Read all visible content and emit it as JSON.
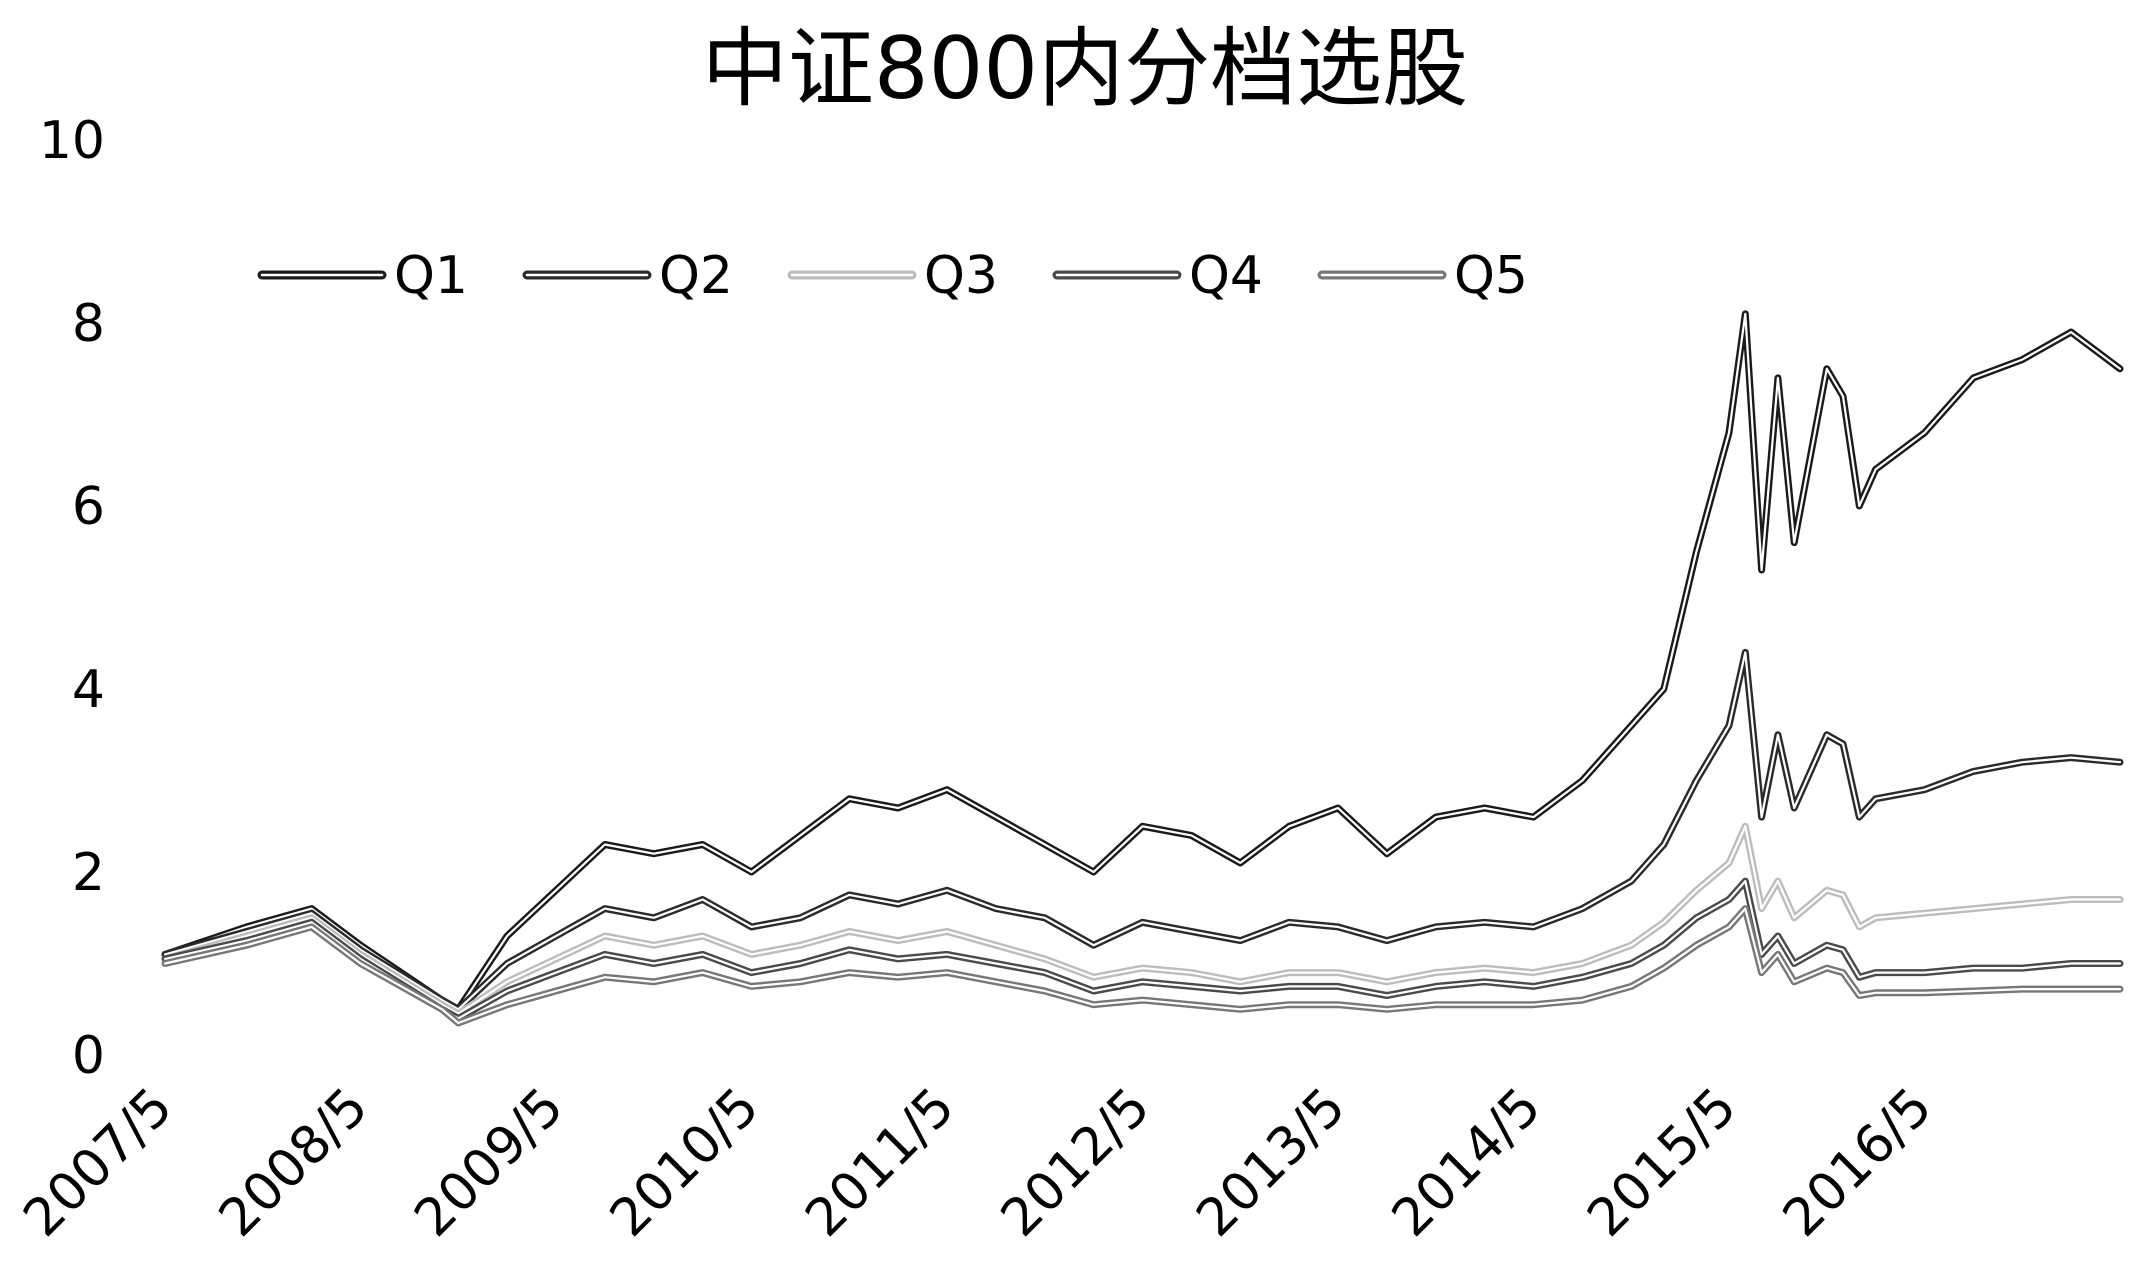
{
  "chart_data": {
    "type": "line",
    "title": "中证800内分档选股",
    "xlabel": "",
    "ylabel": "",
    "ylim": [
      0,
      10
    ],
    "yticks": [
      "0",
      "2",
      "4",
      "6",
      "8",
      "10"
    ],
    "x_tick_labels": [
      "2007/5",
      "2008/5",
      "2009/5",
      "2010/5",
      "2011/5",
      "2012/5",
      "2013/5",
      "2014/5",
      "2015/5",
      "2016/5"
    ],
    "xlim": [
      "2007/5",
      "2017/5"
    ],
    "grid": false,
    "legend_position": "top",
    "x": [
      "2007/5",
      "2007/10",
      "2008/2",
      "2008/5",
      "2008/10",
      "2008/11",
      "2009/2",
      "2009/5",
      "2009/8",
      "2009/11",
      "2010/2",
      "2010/5",
      "2010/8",
      "2010/11",
      "2011/2",
      "2011/5",
      "2011/8",
      "2011/11",
      "2012/2",
      "2012/5",
      "2012/8",
      "2012/11",
      "2013/2",
      "2013/5",
      "2013/8",
      "2013/11",
      "2014/2",
      "2014/5",
      "2014/8",
      "2014/11",
      "2015/1",
      "2015/3",
      "2015/5",
      "2015/6",
      "2015/7",
      "2015/8",
      "2015/9",
      "2015/11",
      "2015/12",
      "2016/1",
      "2016/2",
      "2016/5",
      "2016/8",
      "2016/11",
      "2017/2",
      "2017/5"
    ],
    "series": [
      {
        "name": "Q1",
        "color": "#1a1a1a",
        "values": [
          1.1,
          1.4,
          1.6,
          1.2,
          0.6,
          0.5,
          1.3,
          1.8,
          2.3,
          2.2,
          2.3,
          2.0,
          2.4,
          2.8,
          2.7,
          2.9,
          2.6,
          2.3,
          2.0,
          2.5,
          2.4,
          2.1,
          2.5,
          2.7,
          2.2,
          2.6,
          2.7,
          2.6,
          3.0,
          3.6,
          4.0,
          5.5,
          6.8,
          8.1,
          5.3,
          7.4,
          5.6,
          7.5,
          7.2,
          6.0,
          6.4,
          6.8,
          7.4,
          7.6,
          7.9,
          7.5
        ]
      },
      {
        "name": "Q2",
        "color": "#2a2a2a",
        "values": [
          1.1,
          1.35,
          1.55,
          1.15,
          0.6,
          0.5,
          1.0,
          1.3,
          1.6,
          1.5,
          1.7,
          1.4,
          1.5,
          1.75,
          1.65,
          1.8,
          1.6,
          1.5,
          1.2,
          1.45,
          1.35,
          1.25,
          1.45,
          1.4,
          1.25,
          1.4,
          1.45,
          1.4,
          1.6,
          1.9,
          2.3,
          3.0,
          3.6,
          4.4,
          2.6,
          3.5,
          2.7,
          3.5,
          3.4,
          2.6,
          2.8,
          2.9,
          3.1,
          3.2,
          3.25,
          3.2
        ]
      },
      {
        "name": "Q3",
        "color": "#bdbdbd",
        "values": [
          1.05,
          1.3,
          1.5,
          1.1,
          0.55,
          0.45,
          0.8,
          1.05,
          1.3,
          1.2,
          1.3,
          1.1,
          1.2,
          1.35,
          1.25,
          1.35,
          1.2,
          1.05,
          0.85,
          0.95,
          0.9,
          0.8,
          0.9,
          0.9,
          0.8,
          0.9,
          0.95,
          0.9,
          1.0,
          1.2,
          1.45,
          1.8,
          2.1,
          2.5,
          1.6,
          1.9,
          1.5,
          1.8,
          1.75,
          1.4,
          1.5,
          1.55,
          1.6,
          1.65,
          1.7,
          1.7
        ]
      },
      {
        "name": "Q4",
        "color": "#4a4a4a",
        "values": [
          1.05,
          1.25,
          1.45,
          1.05,
          0.5,
          0.4,
          0.7,
          0.9,
          1.1,
          1.0,
          1.1,
          0.9,
          1.0,
          1.15,
          1.05,
          1.1,
          1.0,
          0.9,
          0.7,
          0.8,
          0.75,
          0.7,
          0.75,
          0.75,
          0.65,
          0.75,
          0.8,
          0.75,
          0.85,
          1.0,
          1.2,
          1.5,
          1.7,
          1.9,
          1.1,
          1.3,
          1.0,
          1.2,
          1.15,
          0.85,
          0.9,
          0.9,
          0.95,
          0.95,
          1.0,
          1.0
        ]
      },
      {
        "name": "Q5",
        "color": "#777777",
        "values": [
          1.0,
          1.2,
          1.4,
          1.0,
          0.5,
          0.35,
          0.55,
          0.7,
          0.85,
          0.8,
          0.9,
          0.75,
          0.8,
          0.9,
          0.85,
          0.9,
          0.8,
          0.7,
          0.55,
          0.6,
          0.55,
          0.5,
          0.55,
          0.55,
          0.5,
          0.55,
          0.55,
          0.55,
          0.6,
          0.75,
          0.95,
          1.2,
          1.4,
          1.6,
          0.9,
          1.1,
          0.8,
          0.95,
          0.9,
          0.65,
          0.68,
          0.68,
          0.7,
          0.72,
          0.72,
          0.72
        ]
      }
    ]
  }
}
